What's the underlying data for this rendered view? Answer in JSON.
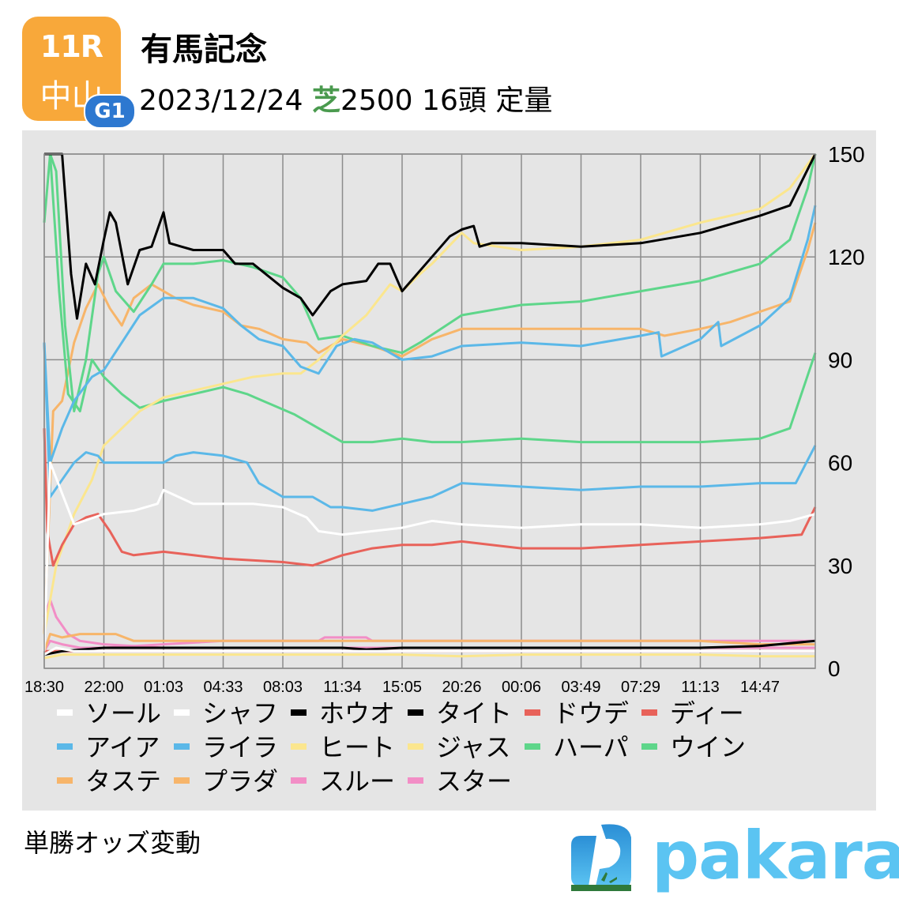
{
  "header": {
    "race_number": "11R",
    "venue": "中山",
    "grade": "G1",
    "race_name": "有馬記念",
    "date": "2023/12/24",
    "surface": "芝",
    "distance": "2500",
    "runners": "16頭",
    "weight_rule": "定量"
  },
  "colors": {
    "badge_orange": "#f8a83a",
    "grade_blue": "#2d78d0",
    "surface_green": "#4a9a4e",
    "panel_bg": "#e5e5e5",
    "grid": "#8c8c8c",
    "logo_blue": "#5bc4f2"
  },
  "footer": {
    "caption": "単勝オッズ変動",
    "logo_text": "pakara"
  },
  "chart_data": {
    "type": "line",
    "title": "単勝オッズ変動",
    "xlabel": "",
    "ylabel": "",
    "x_tick_labels": [
      "18:30",
      "22:00",
      "01:03",
      "04:33",
      "08:03",
      "11:34",
      "15:05",
      "20:26",
      "00:06",
      "03:49",
      "07:29",
      "11:13",
      "14:47"
    ],
    "y_ticks": [
      0,
      30,
      60,
      90,
      120,
      150
    ],
    "ylim": [
      0,
      150
    ],
    "y_axis_position": "right",
    "grid": true,
    "legend_position": "bottom",
    "x_index_note": "x is tick index 0..12 (13 = final point at race time)",
    "series": [
      {
        "name": "ソール",
        "color": "#ffffff",
        "x": [
          0,
          0.1,
          0.5,
          1,
          1.5,
          1.9,
          2,
          2.5,
          3,
          3.5,
          4,
          4.4,
          4.6,
          5,
          5.5,
          6,
          6.5,
          7,
          8,
          9,
          10,
          11,
          12,
          12.5,
          13
        ],
        "values": [
          5,
          60,
          42,
          45,
          46,
          48,
          52,
          48,
          48,
          48,
          47,
          44,
          40,
          39,
          40,
          41,
          43,
          42,
          41,
          42,
          42,
          41,
          42,
          43,
          45
        ]
      },
      {
        "name": "シャフ",
        "color": "#ffffff",
        "x": [
          0,
          0.2,
          0.5,
          1,
          2,
          3,
          4,
          5,
          6,
          7,
          8,
          9,
          10,
          11,
          12,
          13
        ],
        "values": [
          4,
          6,
          5,
          5,
          5,
          5,
          5,
          5,
          5,
          5,
          5,
          5,
          5,
          5,
          5,
          5
        ]
      },
      {
        "name": "ホウオ",
        "color": "#000000",
        "x": [
          0,
          0.3,
          0.45,
          0.55,
          0.7,
          0.85,
          1,
          1.1,
          1.2,
          1.4,
          1.6,
          1.8,
          2,
          2.1,
          2.3,
          2.5,
          3,
          3.2,
          3.5,
          4,
          4.3,
          4.5,
          4.8,
          5,
          5.4,
          5.6,
          5.8,
          6,
          6.5,
          6.8,
          7,
          7.2,
          7.3,
          7.5,
          8,
          9,
          10,
          11,
          12,
          12.5,
          12.7,
          13
        ],
        "values": [
          150,
          150,
          115,
          102,
          118,
          112,
          125,
          133,
          130,
          112,
          122,
          123,
          133,
          124,
          123,
          122,
          122,
          118,
          118,
          111,
          108,
          103,
          110,
          112,
          113,
          118,
          118,
          110,
          120,
          126,
          128,
          129,
          123,
          124,
          124,
          123,
          124,
          127,
          132,
          135,
          142,
          150
        ]
      },
      {
        "name": "タイト",
        "color": "#000000",
        "x": [
          0,
          0.3,
          1,
          2,
          3,
          4,
          5,
          5.4,
          6,
          7,
          8,
          9,
          10,
          11,
          12,
          13
        ],
        "values": [
          4,
          5,
          6,
          6,
          6,
          6,
          6,
          5.5,
          6,
          6,
          6,
          6,
          6,
          6,
          6.5,
          8
        ]
      },
      {
        "name": "ドウデ",
        "color": "#e8625a",
        "x": [
          0,
          0.05,
          0.15,
          0.3,
          0.5,
          0.7,
          0.9,
          1.1,
          1.3,
          1.5,
          2,
          2.5,
          3,
          4,
          4.5,
          5,
          5.5,
          6,
          6.5,
          7,
          8,
          9,
          10,
          11,
          12,
          12.7,
          13
        ],
        "values": [
          70,
          40,
          30,
          36,
          42,
          44,
          45,
          40,
          34,
          33,
          34,
          33,
          32,
          31,
          30,
          33,
          35,
          36,
          36,
          37,
          35,
          35,
          36,
          37,
          38,
          39,
          47
        ]
      },
      {
        "name": "ディー",
        "color": "#e8625a",
        "x": [
          0,
          0.3,
          1,
          2,
          3,
          4,
          5,
          6,
          7,
          8,
          9,
          10,
          11,
          12,
          13
        ],
        "values": [
          5,
          5,
          5,
          5,
          5,
          5,
          5,
          5,
          5,
          5,
          5,
          5,
          5,
          5,
          5
        ]
      },
      {
        "name": "アイア",
        "color": "#5bb8e8",
        "x": [
          0,
          0.1,
          0.3,
          0.5,
          0.7,
          0.9,
          1,
          1.5,
          2,
          2.2,
          2.5,
          3,
          3.4,
          3.6,
          4,
          4.5,
          4.8,
          5,
          5.5,
          6,
          6.5,
          7,
          8,
          9,
          10,
          11,
          12,
          12.6,
          13
        ],
        "values": [
          95,
          50,
          55,
          60,
          63,
          62,
          60,
          60,
          60,
          62,
          63,
          62,
          60,
          54,
          50,
          50,
          47,
          47,
          46,
          48,
          50,
          54,
          53,
          52,
          53,
          53,
          54,
          54,
          65
        ]
      },
      {
        "name": "ライラ",
        "color": "#5bb8e8",
        "x": [
          0,
          0.1,
          0.3,
          0.5,
          0.8,
          1,
          1.3,
          1.6,
          2,
          2.5,
          3,
          3.3,
          3.6,
          4,
          4.3,
          4.6,
          4.9,
          5.2,
          5.5,
          6,
          6.5,
          7,
          8,
          9,
          10,
          10.3,
          10.35,
          11,
          11.3,
          11.35,
          12,
          12.5,
          12.8,
          13
        ],
        "values": [
          95,
          60,
          70,
          78,
          85,
          87,
          95,
          103,
          108,
          108,
          105,
          100,
          96,
          94,
          88,
          86,
          94,
          96,
          95,
          90,
          91,
          94,
          95,
          94,
          97,
          98,
          91,
          96,
          101,
          94,
          100,
          108,
          125,
          135
        ]
      },
      {
        "name": "ヒート",
        "color": "#fbe68e",
        "x": [
          0,
          0.2,
          0.5,
          0.8,
          1,
          1.3,
          1.6,
          2,
          2.5,
          3,
          3.5,
          4,
          4.3,
          4.6,
          5,
          5.4,
          5.8,
          6,
          6.3,
          6.5,
          7,
          7.2,
          8,
          9,
          10,
          11,
          12,
          12.5,
          13
        ],
        "values": [
          10,
          30,
          45,
          55,
          65,
          70,
          75,
          79,
          81,
          83,
          85,
          86,
          86,
          90,
          97,
          103,
          112,
          110,
          115,
          118,
          127,
          124,
          122,
          123,
          125,
          130,
          134,
          140,
          150
        ]
      },
      {
        "name": "ジャス",
        "color": "#fbe68e",
        "x": [
          0,
          0.3,
          1,
          2,
          3,
          4,
          5,
          6,
          7,
          8,
          9,
          10,
          11,
          12,
          13
        ],
        "values": [
          3,
          4,
          4,
          4,
          4,
          4,
          4,
          4,
          3.5,
          4,
          4,
          4,
          4,
          3.5,
          3.5
        ]
      },
      {
        "name": "ハーパ",
        "color": "#5ed68a",
        "x": [
          0,
          0.1,
          0.2,
          0.35,
          0.5,
          0.7,
          0.9,
          1,
          1.2,
          1.5,
          1.8,
          2,
          2.5,
          3,
          3.5,
          4,
          4.3,
          4.6,
          5,
          5.5,
          6,
          6.3,
          7,
          8,
          9,
          10,
          11,
          12,
          12.5,
          12.8,
          13
        ],
        "values": [
          130,
          150,
          145,
          100,
          75,
          90,
          115,
          120,
          110,
          104,
          112,
          118,
          118,
          119,
          117,
          114,
          108,
          96,
          97,
          94,
          92,
          95,
          103,
          106,
          107,
          110,
          113,
          118,
          125,
          140,
          150
        ]
      },
      {
        "name": "ウイン",
        "color": "#5ed68a",
        "x": [
          0,
          0.1,
          0.25,
          0.4,
          0.6,
          0.8,
          1,
          1.3,
          1.6,
          2,
          2.5,
          3,
          3.4,
          3.8,
          4.2,
          4.6,
          5,
          5.5,
          6,
          6.5,
          7,
          8,
          9,
          10,
          11,
          12,
          12.5,
          13
        ],
        "values": [
          150,
          150,
          110,
          80,
          75,
          90,
          85,
          80,
          76,
          78,
          80,
          82,
          80,
          77,
          74,
          70,
          66,
          66,
          67,
          66,
          66,
          67,
          66,
          66,
          66,
          67,
          70,
          92
        ]
      },
      {
        "name": "タステ",
        "color": "#f7b56a",
        "x": [
          0,
          0.15,
          0.3,
          0.5,
          0.7,
          0.9,
          1.1,
          1.3,
          1.5,
          1.8,
          2,
          2.2,
          2.5,
          3,
          3.3,
          3.6,
          4,
          4.4,
          4.6,
          5,
          5.5,
          6,
          6.5,
          7,
          8,
          9,
          10,
          10.4,
          11,
          11.5,
          12,
          12.5,
          12.8,
          13
        ],
        "values": [
          10,
          75,
          78,
          95,
          105,
          112,
          105,
          100,
          108,
          112,
          110,
          108,
          106,
          104,
          100,
          99,
          96,
          95,
          92,
          96,
          94,
          91,
          96,
          99,
          99,
          99,
          99,
          97,
          99,
          101,
          104,
          107,
          122,
          130
        ]
      },
      {
        "name": "プラダ",
        "color": "#f7b56a",
        "x": [
          0,
          0.1,
          0.3,
          0.6,
          1,
          1.2,
          1.5,
          2,
          3,
          4,
          5,
          6,
          7,
          8,
          9,
          10,
          11,
          12,
          13
        ],
        "values": [
          5,
          10,
          9,
          10,
          10,
          10,
          8,
          8,
          8,
          8,
          8,
          8,
          8,
          8,
          8,
          8,
          8,
          7,
          7
        ]
      },
      {
        "name": "スルー",
        "color": "#f28ec6",
        "x": [
          0,
          0.1,
          0.2,
          0.4,
          0.6,
          1,
          2,
          3,
          4,
          4.6,
          5,
          5.4,
          6,
          7,
          8,
          9,
          10,
          11,
          12,
          13
        ],
        "values": [
          15,
          20,
          15,
          10,
          8,
          7,
          6,
          6,
          6,
          6,
          6,
          6,
          6,
          6,
          6,
          6,
          6,
          6,
          6,
          6
        ]
      },
      {
        "name": "スター",
        "color": "#f28ec6",
        "x": [
          0,
          0.1,
          0.3,
          0.6,
          1,
          2,
          3,
          4,
          4.6,
          4.7,
          5.4,
          5.5,
          6,
          7,
          8,
          9,
          10,
          11,
          12,
          13
        ],
        "values": [
          5,
          8,
          7,
          6,
          6,
          7,
          8,
          8,
          8,
          9,
          9,
          8,
          8,
          8,
          8,
          8,
          8,
          8,
          8,
          8
        ]
      }
    ]
  }
}
